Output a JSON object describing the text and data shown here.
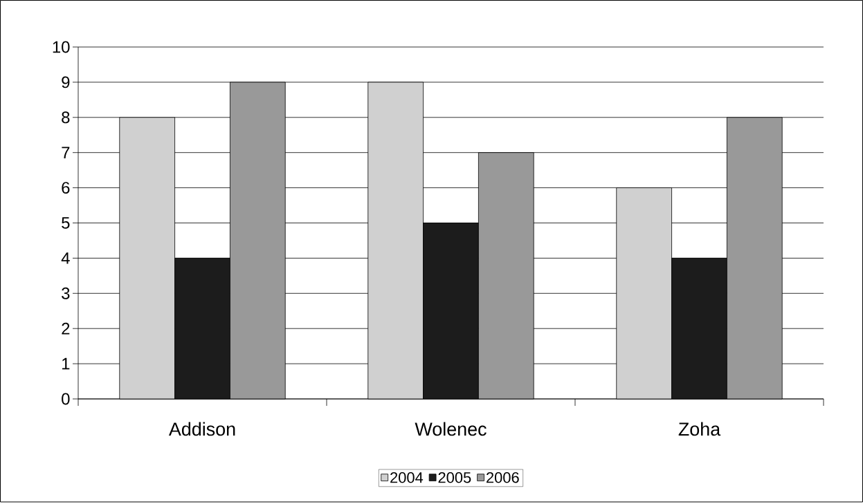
{
  "chart_data": {
    "type": "bar",
    "categories": [
      "Addison",
      "Wolenec",
      "Zoha"
    ],
    "series": [
      {
        "name": "2004",
        "color": "#d0d0d0",
        "values": [
          8,
          9,
          6
        ]
      },
      {
        "name": "2005",
        "color": "#1c1c1c",
        "values": [
          4,
          5,
          4
        ]
      },
      {
        "name": "2006",
        "color": "#999999",
        "values": [
          9,
          7,
          8
        ]
      }
    ],
    "ylim": [
      0,
      10
    ],
    "yticks": [
      0,
      1,
      2,
      3,
      4,
      5,
      6,
      7,
      8,
      9,
      10
    ],
    "grid": "y",
    "legend": "bottom"
  }
}
